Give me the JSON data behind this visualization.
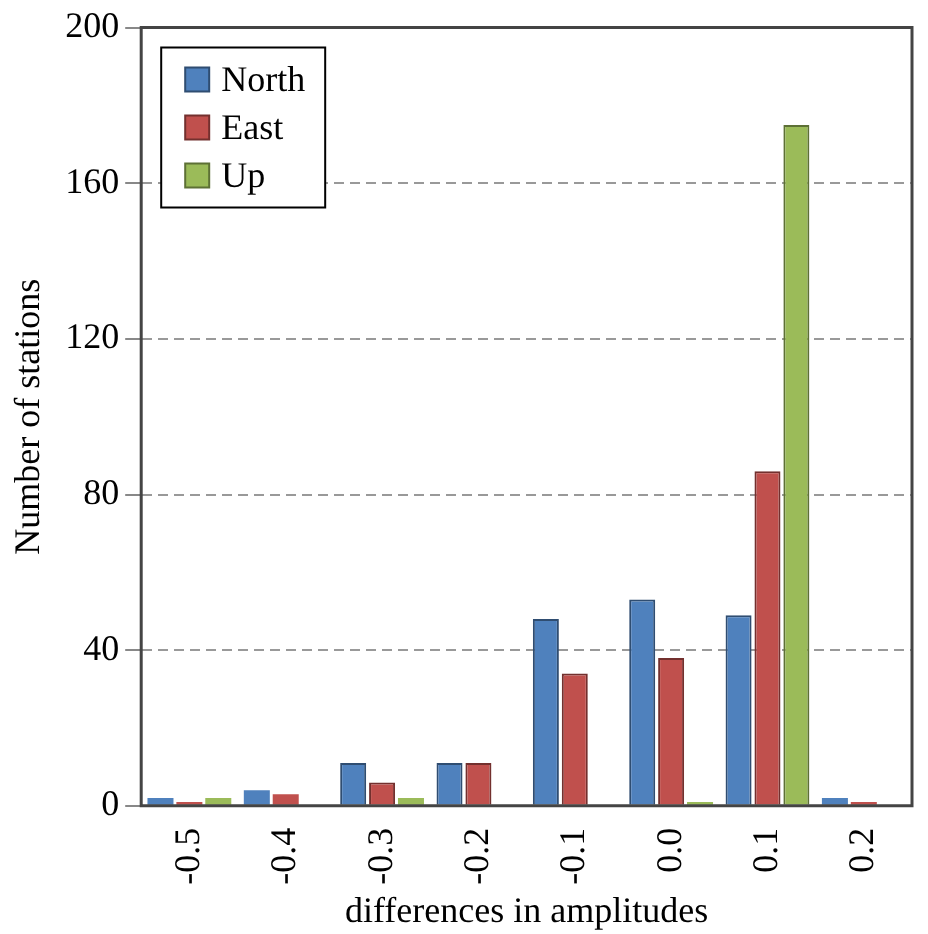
{
  "chart_data": {
    "type": "bar",
    "xlabel": "differences in amplitudes",
    "ylabel": "Number of stations",
    "categories": [
      "-0.5",
      "-0.4",
      "-0.3",
      "-0.2",
      "-0.1",
      "0.0",
      "0.1",
      "0.2"
    ],
    "series": [
      {
        "name": "North",
        "color": "#4f81bd",
        "values": [
          2,
          4,
          11,
          11,
          48,
          53,
          49,
          2
        ]
      },
      {
        "name": "East",
        "color": "#c0504d",
        "values": [
          1,
          3,
          6,
          11,
          34,
          38,
          86,
          1
        ]
      },
      {
        "name": "Up",
        "color": "#9bbb59",
        "values": [
          2,
          0,
          2,
          0,
          0,
          1,
          175,
          0
        ]
      }
    ],
    "ylim": [
      0,
      200
    ],
    "yticks": [
      0,
      40,
      80,
      120,
      160,
      200
    ],
    "grid": "y",
    "legend": "top left"
  }
}
